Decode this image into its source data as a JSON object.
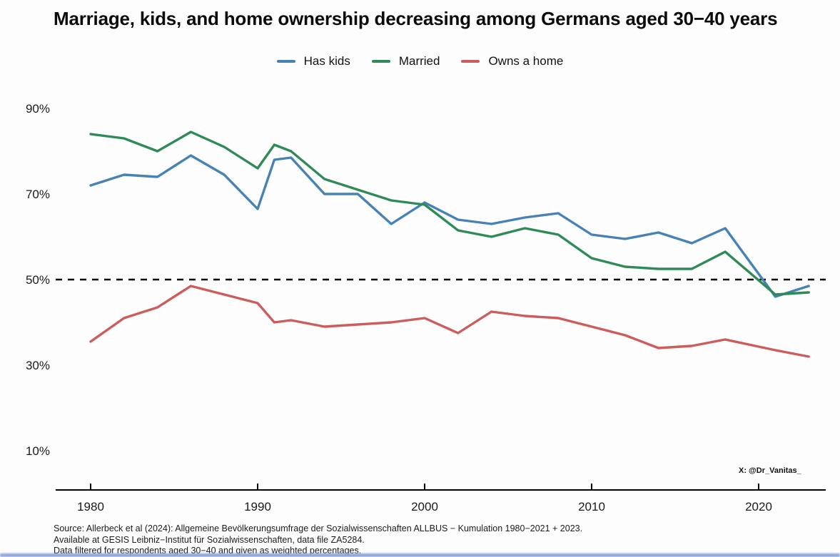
{
  "title": "Marriage, kids, and home ownership decreasing among Germans aged 30−40 years",
  "annotations": {
    "credit": "X: @Dr_Vanitas_"
  },
  "footer": {
    "lines": [
      "Source: Allerbeck et al (2024): Allgemeine Bevölkerungsumfrage der Sozialwissenschaften ALLBUS − Kumulation 1980−2021 + 2023.",
      "Available at GESIS Leibniz−Institut für Sozialwissenschaften, data file ZA5284.",
      "Data filtered for respondents aged 30−40 and given as weighted percentages."
    ]
  },
  "chart_data": {
    "type": "line",
    "x": [
      1980,
      1982,
      1984,
      1986,
      1988,
      1990,
      1991,
      1992,
      1994,
      1996,
      1998,
      2000,
      2002,
      2004,
      2006,
      2008,
      2010,
      2012,
      2014,
      2016,
      2018,
      2021,
      2023
    ],
    "series": [
      {
        "name": "Has kids",
        "color": "#4682B4",
        "values": [
          72,
          74.5,
          74,
          79,
          74.5,
          66.5,
          78,
          78.5,
          70,
          70,
          63,
          68,
          64,
          63,
          64.5,
          65.5,
          60.5,
          59.5,
          61,
          58.5,
          62,
          46,
          48.5
        ]
      },
      {
        "name": "Married",
        "color": "#2E8B57",
        "values": [
          84,
          83,
          80,
          84.5,
          81,
          76,
          81.5,
          80,
          73.5,
          71,
          68.5,
          67.5,
          61.5,
          60,
          62,
          60.5,
          55,
          53,
          52.5,
          52.5,
          56.5,
          46.5,
          47
        ]
      },
      {
        "name": "Owns a home",
        "color": "#CD5C5C",
        "values": [
          35.5,
          41,
          43.5,
          48.5,
          46.5,
          44.5,
          40,
          40.5,
          39,
          39.5,
          40,
          41,
          37.5,
          42.5,
          41.5,
          41,
          39,
          37,
          34,
          34.5,
          36,
          33.5,
          32
        ]
      }
    ],
    "y_ticks": [
      90,
      70,
      50,
      30,
      10
    ],
    "y_tick_format": "percent",
    "x_ticks": [
      1980,
      1990,
      2000,
      2010,
      2020
    ],
    "reference_line": 50,
    "ylim": [
      2,
      95
    ],
    "xlim": [
      1978,
      2025
    ],
    "grid": false,
    "legend_position": "top",
    "xlabel": "",
    "ylabel": ""
  }
}
